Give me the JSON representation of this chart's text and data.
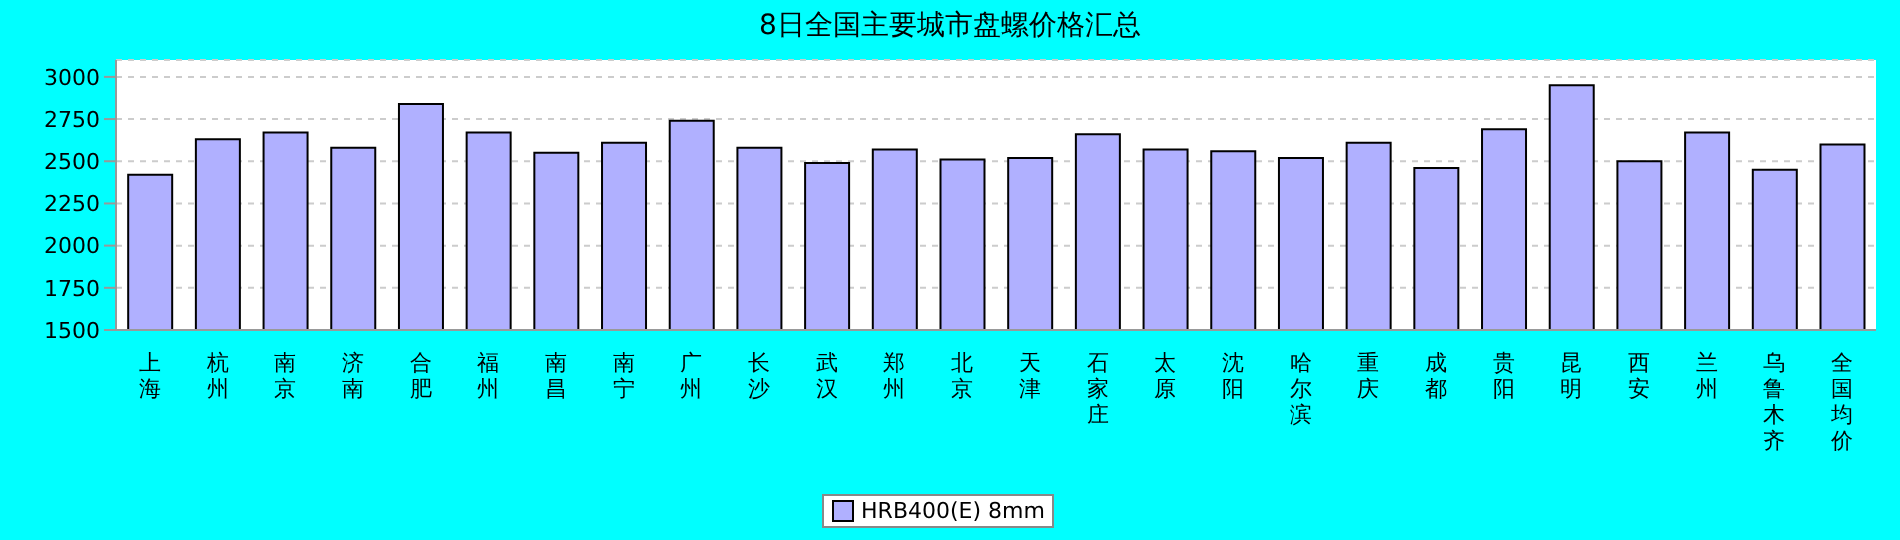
{
  "chart_data": {
    "type": "bar",
    "title": "8日全国主要城市盘螺价格汇总",
    "categories": [
      "上海",
      "杭州",
      "南京",
      "济南",
      "合肥",
      "福州",
      "南昌",
      "南宁",
      "广州",
      "长沙",
      "武汉",
      "郑州",
      "北京",
      "天津",
      "石家庄",
      "太原",
      "沈阳",
      "哈尔滨",
      "重庆",
      "成都",
      "贵阳",
      "昆明",
      "西安",
      "兰州",
      "乌鲁木齐",
      "全国均价"
    ],
    "series": [
      {
        "name": "HRB400(E) 8mm",
        "color": "#b0b0ff",
        "values": [
          2420,
          2630,
          2670,
          2580,
          2840,
          2670,
          2550,
          2610,
          2740,
          2580,
          2490,
          2570,
          2510,
          2520,
          2660,
          2570,
          2560,
          2520,
          2610,
          2460,
          2690,
          2950,
          2500,
          2670,
          2450,
          2600
        ]
      }
    ],
    "ylim": [
      1500,
      3100
    ],
    "yticks": [
      1500,
      1750,
      2000,
      2250,
      2500,
      2750,
      3000
    ],
    "grid": "y",
    "legend": "bottom"
  }
}
